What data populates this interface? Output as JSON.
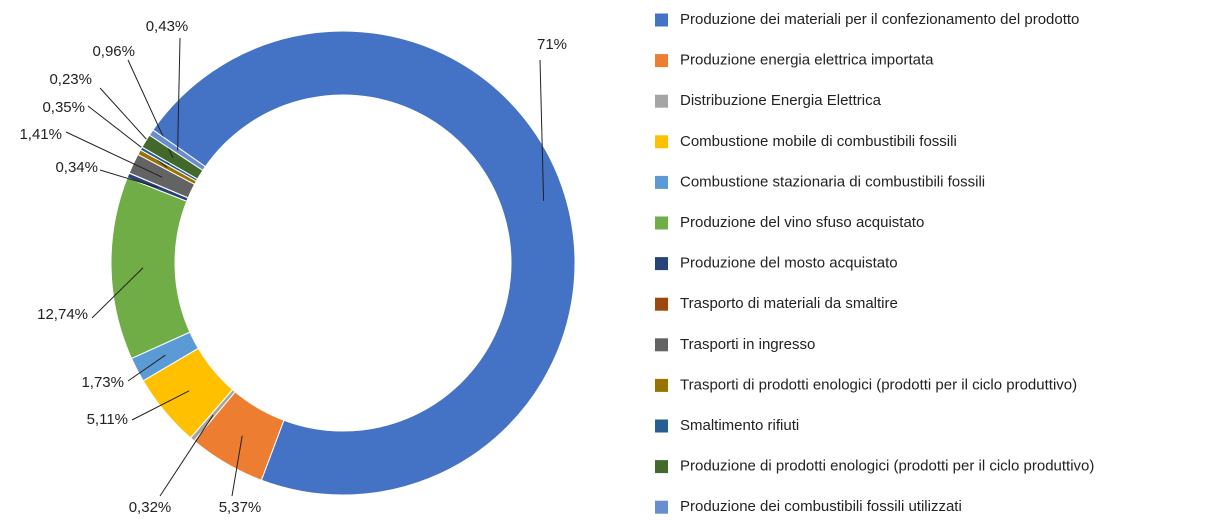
{
  "chart_data": {
    "type": "donut",
    "categories": [
      "Produzione dei materiali per il confezionamento del prodotto",
      "Produzione energia elettrica importata",
      "Distribuzione Energia Elettrica",
      "Combustione mobile di combustibili fossili",
      "Combustione stazionaria di combustibili fossili",
      "Produzione del vino sfuso acquistato",
      "Produzione del mosto acquistato",
      "Trasporto di materiali da smaltire",
      "Trasporti in ingresso",
      "Trasporti di prodotti enologici (prodotti per il ciclo produttivo)",
      "Smaltimento rifiuti",
      "Produzione di prodotti enologici (prodotti per il ciclo produttivo)",
      "Produzione dei combustibili fossili utilizzati"
    ],
    "values": [
      71,
      5.37,
      0.32,
      5.11,
      1.73,
      12.74,
      0.34,
      0.01,
      1.41,
      0.35,
      0.23,
      0.96,
      0.43
    ],
    "value_labels": [
      "71%",
      "5,37%",
      "0,32%",
      "5,11%",
      "1,73%",
      "12,74%",
      "0,34%",
      null,
      "1,41%",
      "0,35%",
      "0,23%",
      "0,96%",
      "0,43%"
    ],
    "colors": [
      "#4472c4",
      "#ed7d31",
      "#a5a5a5",
      "#ffc000",
      "#5b9bd5",
      "#70ad47",
      "#264478",
      "#9e480e",
      "#636363",
      "#997300",
      "#255e91",
      "#43682b",
      "#698ed0"
    ],
    "legend": "right"
  }
}
